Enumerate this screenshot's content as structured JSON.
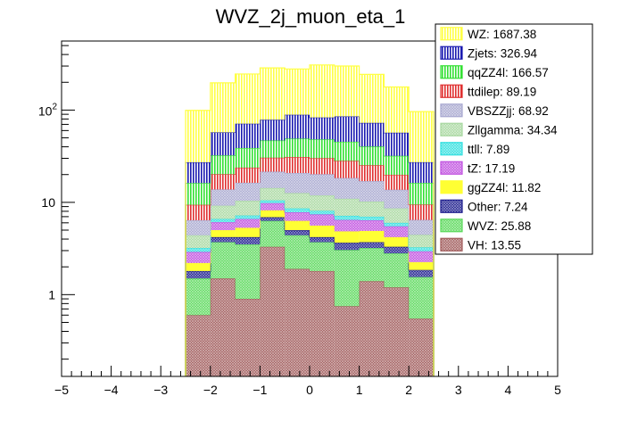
{
  "chart_data": {
    "type": "bar",
    "stacked": true,
    "title": "WVZ_2j_muon_eta_1",
    "xlabel": "",
    "ylabel": "",
    "xlim": [
      -5,
      5
    ],
    "ylim": [
      0.13,
      560
    ],
    "yscale": "log",
    "x_ticks": [
      "−5",
      "−4",
      "−3",
      "−2",
      "−1",
      "0",
      "1",
      "2",
      "3",
      "4",
      "5"
    ],
    "x_tick_values": [
      -5,
      -4,
      -3,
      -2,
      -1,
      0,
      1,
      2,
      3,
      4,
      5
    ],
    "y_ticks": [
      "1",
      "10",
      "10²"
    ],
    "y_tick_values": [
      1,
      10,
      100
    ],
    "bin_edges": [
      -2.5,
      -2.0,
      -1.5,
      -1.0,
      -0.5,
      0.0,
      0.5,
      1.0,
      1.5,
      2.0,
      2.5
    ],
    "legend_position": "top-right",
    "series": [
      {
        "name": "VH",
        "legend": "VH: 13.55",
        "color": "#a05a5a",
        "pattern": "cross",
        "values": [
          0.6,
          1.5,
          0.9,
          3.3,
          1.9,
          1.8,
          0.75,
          1.4,
          1.2,
          0.55
        ]
      },
      {
        "name": "WVZ",
        "legend": "WVZ: 25.88",
        "color": "#5ad95a",
        "pattern": "cross",
        "values": [
          0.9,
          2.2,
          2.6,
          3.0,
          2.5,
          1.9,
          2.3,
          1.8,
          1.6,
          1.0
        ]
      },
      {
        "name": "Other",
        "legend": "Other: 7.24",
        "color": "#1a1a8c",
        "pattern": "cross",
        "values": [
          0.3,
          0.5,
          0.7,
          0.6,
          0.6,
          0.5,
          0.6,
          0.5,
          0.5,
          0.3
        ]
      },
      {
        "name": "ggZZ4l",
        "legend": "ggZZ4l: 11.82",
        "color": "#ffff33",
        "pattern": "solid",
        "values": [
          0.4,
          0.8,
          1.1,
          1.3,
          1.3,
          1.4,
          1.2,
          1.2,
          0.9,
          0.4
        ]
      },
      {
        "name": "tZ",
        "legend": "tZ: 17.19",
        "color": "#c050e0",
        "pattern": "cross",
        "values": [
          0.7,
          1.1,
          1.3,
          1.6,
          1.5,
          1.8,
          1.6,
          1.5,
          1.3,
          0.7
        ]
      },
      {
        "name": "ttll",
        "legend": "ttll: 7.89",
        "color": "#33e0e0",
        "pattern": "cross",
        "values": [
          0.3,
          0.5,
          0.6,
          0.7,
          0.8,
          0.7,
          0.7,
          0.6,
          0.5,
          0.3
        ]
      },
      {
        "name": "Zllgamma",
        "legend": "Zllgamma: 34.34",
        "color": "#a8d8a0",
        "pattern": "cross",
        "values": [
          1.2,
          2.6,
          3.2,
          3.8,
          4.0,
          3.8,
          3.8,
          3.2,
          2.6,
          1.2
        ]
      },
      {
        "name": "VBSZZjj",
        "legend": "VBSZZjj: 68.92",
        "color": "#a8a8d0",
        "pattern": "cross",
        "values": [
          2.0,
          4.6,
          5.9,
          7.2,
          8.2,
          8.3,
          7.4,
          6.8,
          5.1,
          2.0
        ]
      },
      {
        "name": "ttdilep",
        "legend": "ttdilep: 89.19",
        "color": "#e03030",
        "pattern": "vlines",
        "values": [
          3.0,
          6.4,
          7.5,
          9.0,
          10.2,
          10.0,
          9.8,
          8.3,
          6.2,
          3.0
        ]
      },
      {
        "name": "qqZZ4l",
        "legend": "qqZZ4l: 166.57",
        "color": "#33e033",
        "pattern": "vlines",
        "values": [
          6.8,
          12.1,
          15.0,
          16.3,
          18.0,
          18.0,
          17.2,
          15.0,
          12.0,
          6.8
        ]
      },
      {
        "name": "Zjets",
        "legend": "Zjets: 326.94",
        "color": "#1a1ab0",
        "pattern": "vlines",
        "values": [
          11.0,
          25.0,
          32.4,
          31.8,
          40.0,
          35.0,
          40.0,
          32.4,
          25.0,
          11.0
        ]
      },
      {
        "name": "WZ",
        "legend": "WZ: 1687.38",
        "color": "#ffff44",
        "pattern": "vlines",
        "values": [
          72.0,
          140.0,
          175.0,
          208.0,
          190.0,
          225.0,
          215.0,
          171.0,
          121.0,
          69.0
        ]
      }
    ]
  }
}
